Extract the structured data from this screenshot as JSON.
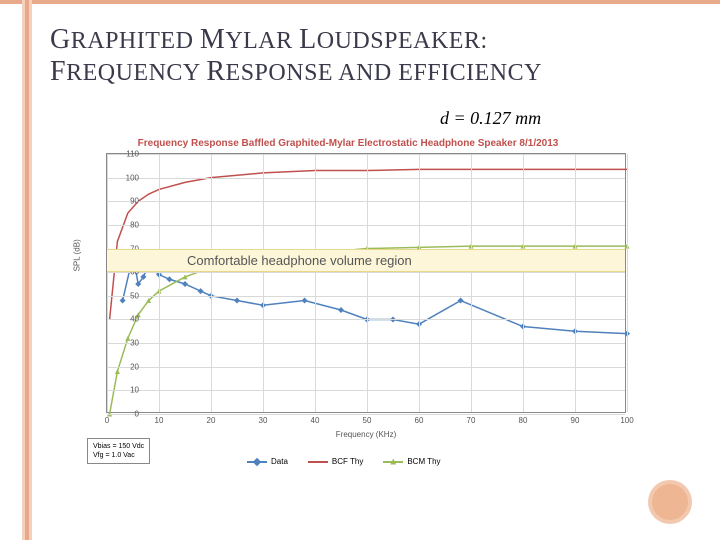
{
  "title_parts": [
    "G",
    "RAPHITED ",
    "M",
    "YLAR ",
    "L",
    "OUDSPEAKER",
    ":",
    "F",
    "REQUENCY ",
    "R",
    "ESPONSE AND EFFICIENCY"
  ],
  "equation": "d = 0.127 mm",
  "chart": {
    "type": "line",
    "title": "Frequency Response Baffled Graphited-Mylar Electrostatic Headphone Speaker 8/1/2013",
    "xlabel": "Frequency (KHz)",
    "ylabel": "SPL (dB)",
    "xlim": [
      0,
      100
    ],
    "ylim": [
      0,
      110
    ],
    "xtick_step": 10,
    "ytick_step": 10,
    "grid_color": "#d9d9d9",
    "background_color": "#ffffff",
    "comfort_band": {
      "ymin": 60,
      "ymax": 70,
      "fill": "#fdf6d8",
      "label": "Comfortable headphone volume region"
    },
    "series": [
      {
        "name": "Data",
        "color": "#4f81bd",
        "marker": "diamond",
        "marker_size": 6,
        "line_width": 1.5,
        "x": [
          3,
          5,
          6,
          7,
          8,
          10,
          12,
          15,
          18,
          20,
          25,
          30,
          38,
          45,
          50,
          55,
          60,
          68,
          80,
          90,
          100
        ],
        "y": [
          48,
          67,
          55,
          58,
          63,
          59,
          57,
          55,
          52,
          50,
          48,
          46,
          48,
          44,
          40,
          40,
          38,
          48,
          37,
          35,
          34
        ]
      },
      {
        "name": "BCF Thy",
        "color": "#c0504d",
        "marker": "none",
        "line_width": 1.5,
        "x": [
          0.5,
          2,
          4,
          6,
          8,
          10,
          15,
          20,
          30,
          40,
          50,
          60,
          70,
          80,
          90,
          100
        ],
        "y": [
          40,
          73,
          85,
          90,
          93,
          95,
          98,
          100,
          102,
          103,
          103,
          103.5,
          103.5,
          103.5,
          103.5,
          103.5
        ]
      },
      {
        "name": "BCM Thy",
        "color": "#9bbb59",
        "marker": "triangle",
        "marker_size": 5,
        "line_width": 1.5,
        "x": [
          0.5,
          2,
          4,
          6,
          8,
          10,
          15,
          20,
          30,
          40,
          50,
          60,
          70,
          80,
          90,
          100
        ],
        "y": [
          0,
          18,
          32,
          42,
          48,
          52,
          58,
          62,
          66,
          68,
          70,
          70.5,
          71,
          71,
          71,
          71
        ]
      }
    ],
    "legend_box": {
      "line1": "Vbias = 150 Vdc",
      "line2": "Vfg   = 1.0 Vac"
    }
  }
}
